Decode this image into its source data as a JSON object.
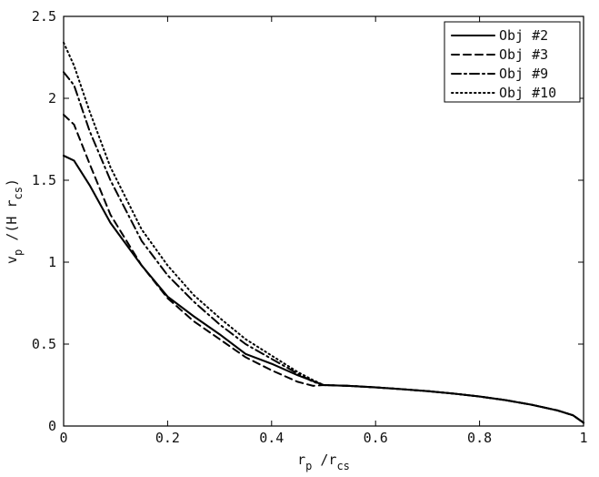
{
  "chart_data": {
    "type": "line",
    "xlim": [
      0,
      1
    ],
    "ylim": [
      0,
      2.5
    ],
    "x_ticks": [
      "0",
      "0.2",
      "0.4",
      "0.6",
      "0.8",
      "1"
    ],
    "y_ticks": [
      "0",
      "0.5",
      "1",
      "1.5",
      "2",
      "2.5"
    ],
    "xlabel": {
      "main": "r",
      "sub": "p",
      "middle": " /r",
      "sub2": "cs"
    },
    "ylabel": {
      "main": "v",
      "sub": "p",
      "middle": " /(H r",
      "sub2": "cs",
      "end": ")"
    },
    "grid": false,
    "legend_position": "top-right",
    "series": [
      {
        "name": "Obj #2",
        "style": "solid",
        "color": "#000000",
        "points": [
          [
            0.0,
            1.65
          ],
          [
            0.02,
            1.62
          ],
          [
            0.05,
            1.47
          ],
          [
            0.09,
            1.24
          ],
          [
            0.15,
            0.98
          ],
          [
            0.2,
            0.79
          ],
          [
            0.25,
            0.67
          ],
          [
            0.3,
            0.56
          ],
          [
            0.35,
            0.44
          ],
          [
            0.4,
            0.38
          ],
          [
            0.45,
            0.31
          ],
          [
            0.5,
            0.25
          ],
          [
            0.55,
            0.245
          ],
          [
            0.6,
            0.236
          ],
          [
            0.65,
            0.225
          ],
          [
            0.7,
            0.213
          ],
          [
            0.75,
            0.198
          ],
          [
            0.8,
            0.18
          ],
          [
            0.85,
            0.158
          ],
          [
            0.9,
            0.13
          ],
          [
            0.95,
            0.095
          ],
          [
            0.98,
            0.065
          ],
          [
            1.0,
            0.02
          ]
        ]
      },
      {
        "name": "Obj #3",
        "style": "dashed",
        "color": "#000000",
        "points": [
          [
            0.0,
            1.9
          ],
          [
            0.02,
            1.84
          ],
          [
            0.05,
            1.6
          ],
          [
            0.09,
            1.29
          ],
          [
            0.15,
            0.98
          ],
          [
            0.2,
            0.78
          ],
          [
            0.25,
            0.64
          ],
          [
            0.3,
            0.53
          ],
          [
            0.35,
            0.42
          ],
          [
            0.4,
            0.34
          ],
          [
            0.45,
            0.27
          ],
          [
            0.48,
            0.245
          ],
          [
            0.5,
            0.25
          ],
          [
            0.55,
            0.245
          ],
          [
            0.6,
            0.236
          ],
          [
            0.65,
            0.225
          ],
          [
            0.7,
            0.213
          ],
          [
            0.75,
            0.198
          ],
          [
            0.8,
            0.18
          ],
          [
            0.85,
            0.158
          ],
          [
            0.9,
            0.13
          ],
          [
            0.95,
            0.095
          ],
          [
            0.98,
            0.065
          ],
          [
            1.0,
            0.02
          ]
        ]
      },
      {
        "name": "Obj #9",
        "style": "dashdot",
        "color": "#000000",
        "points": [
          [
            0.0,
            2.16
          ],
          [
            0.02,
            2.08
          ],
          [
            0.05,
            1.8
          ],
          [
            0.09,
            1.5
          ],
          [
            0.15,
            1.13
          ],
          [
            0.2,
            0.92
          ],
          [
            0.25,
            0.76
          ],
          [
            0.3,
            0.62
          ],
          [
            0.35,
            0.5
          ],
          [
            0.4,
            0.41
          ],
          [
            0.45,
            0.32
          ],
          [
            0.48,
            0.27
          ],
          [
            0.5,
            0.25
          ],
          [
            0.55,
            0.245
          ],
          [
            0.6,
            0.236
          ],
          [
            0.65,
            0.225
          ],
          [
            0.7,
            0.213
          ],
          [
            0.75,
            0.198
          ],
          [
            0.8,
            0.18
          ],
          [
            0.85,
            0.158
          ],
          [
            0.9,
            0.13
          ],
          [
            0.95,
            0.095
          ],
          [
            0.98,
            0.065
          ],
          [
            1.0,
            0.02
          ]
        ]
      },
      {
        "name": "Obj #10",
        "style": "dotted",
        "color": "#000000",
        "points": [
          [
            0.0,
            2.34
          ],
          [
            0.02,
            2.2
          ],
          [
            0.05,
            1.92
          ],
          [
            0.09,
            1.58
          ],
          [
            0.15,
            1.2
          ],
          [
            0.2,
            0.98
          ],
          [
            0.25,
            0.8
          ],
          [
            0.3,
            0.66
          ],
          [
            0.35,
            0.53
          ],
          [
            0.4,
            0.43
          ],
          [
            0.45,
            0.33
          ],
          [
            0.48,
            0.28
          ],
          [
            0.5,
            0.25
          ],
          [
            0.55,
            0.245
          ],
          [
            0.6,
            0.236
          ],
          [
            0.65,
            0.225
          ],
          [
            0.7,
            0.213
          ],
          [
            0.75,
            0.198
          ],
          [
            0.8,
            0.18
          ],
          [
            0.85,
            0.158
          ],
          [
            0.9,
            0.13
          ],
          [
            0.95,
            0.095
          ],
          [
            0.98,
            0.065
          ],
          [
            1.0,
            0.02
          ]
        ]
      }
    ]
  }
}
